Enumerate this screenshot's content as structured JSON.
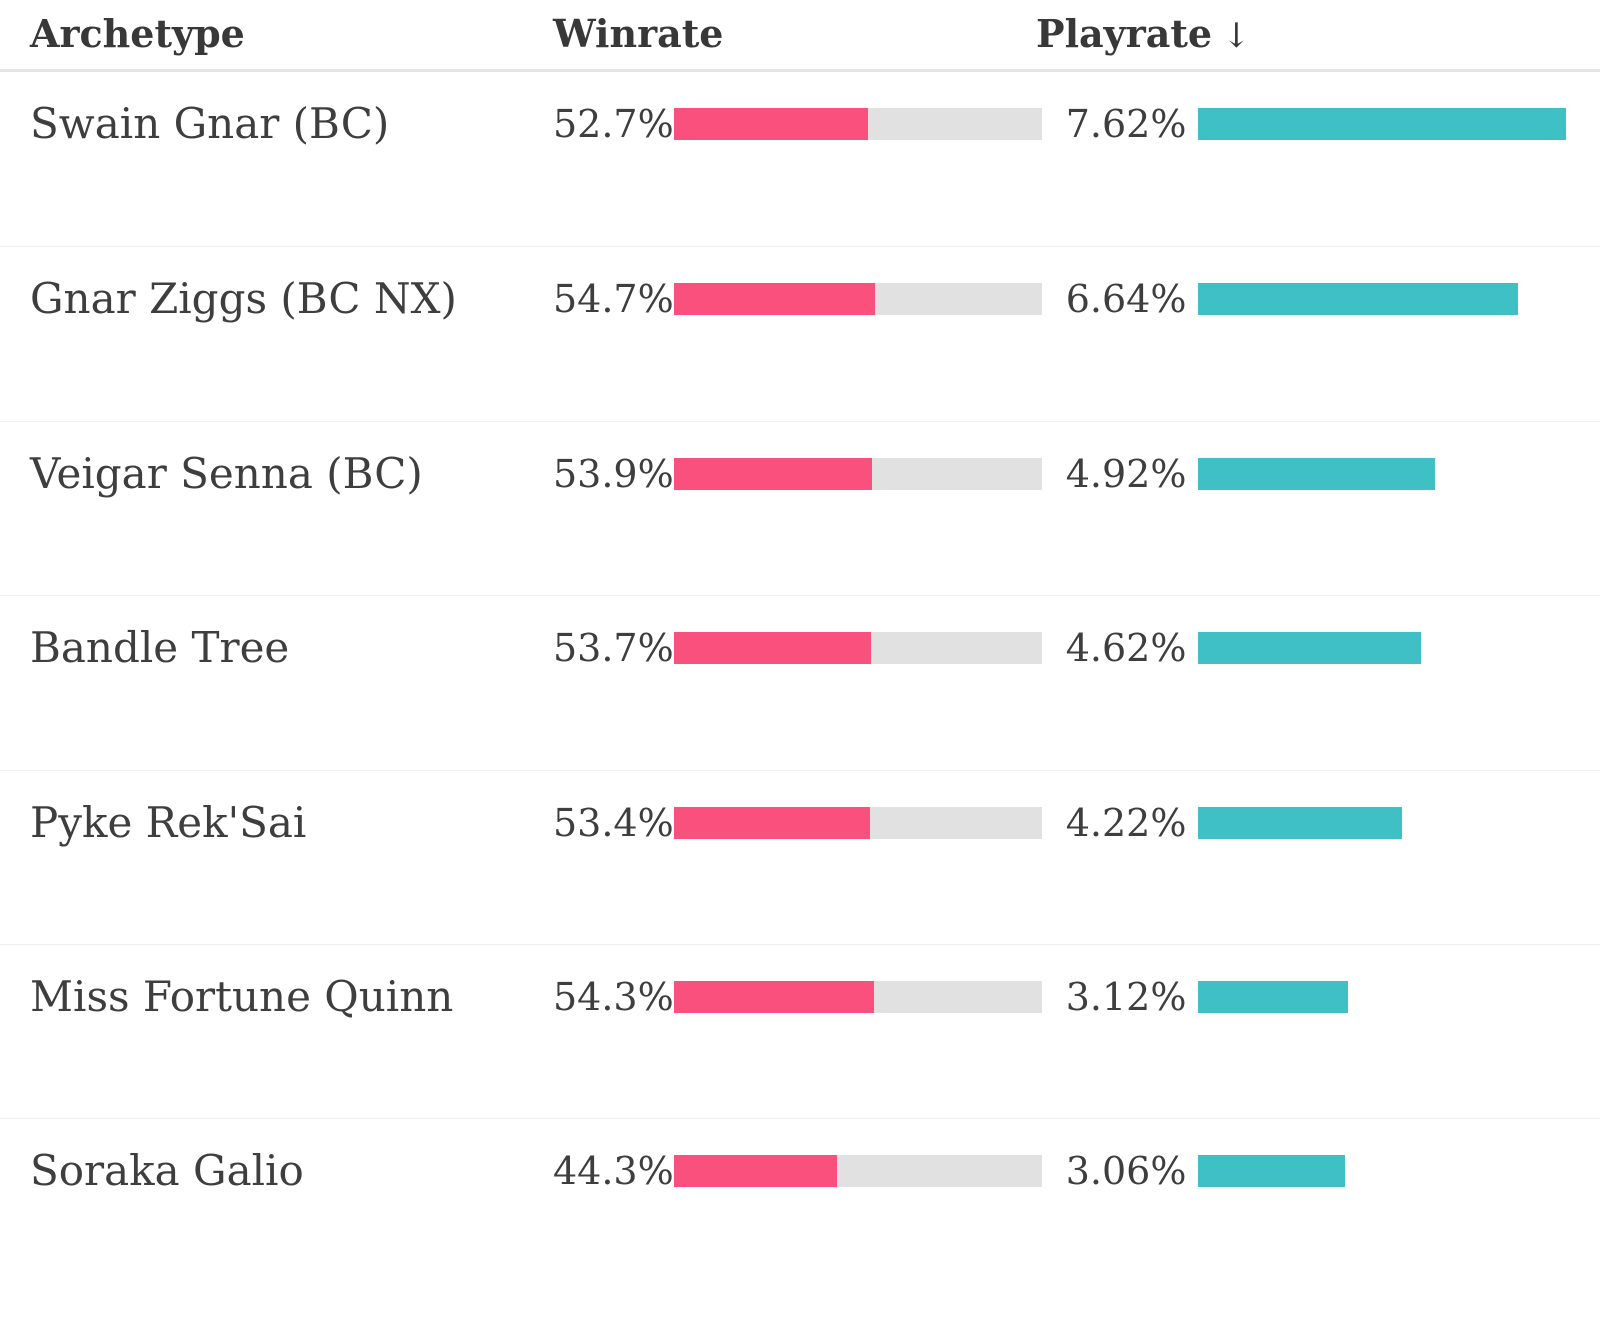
{
  "table": {
    "columns": [
      {
        "label": "Archetype"
      },
      {
        "label": "Winrate"
      },
      {
        "label": "Playrate"
      }
    ],
    "sort": {
      "column": "Playrate",
      "direction": "desc",
      "icon": "↓"
    },
    "rows": [
      {
        "archetype": "Swain Gnar (BC)",
        "winrate": "52.7%",
        "winrate_value": 52.7,
        "playrate": "7.62%",
        "playrate_value": 7.62
      },
      {
        "archetype": "Gnar Ziggs (BC NX)",
        "winrate": "54.7%",
        "winrate_value": 54.7,
        "playrate": "6.64%",
        "playrate_value": 6.64
      },
      {
        "archetype": "Veigar Senna (BC)",
        "winrate": "53.9%",
        "winrate_value": 53.9,
        "playrate": "4.92%",
        "playrate_value": 4.92
      },
      {
        "archetype": "Bandle Tree",
        "winrate": "53.7%",
        "winrate_value": 53.7,
        "playrate": "4.62%",
        "playrate_value": 4.62
      },
      {
        "archetype": "Pyke Rek'Sai",
        "winrate": "53.4%",
        "winrate_value": 53.4,
        "playrate": "4.22%",
        "playrate_value": 4.22
      },
      {
        "archetype": "Miss Fortune Quinn",
        "winrate": "54.3%",
        "winrate_value": 54.3,
        "playrate": "3.12%",
        "playrate_value": 3.12
      },
      {
        "archetype": "Soraka Galio",
        "winrate": "44.3%",
        "winrate_value": 44.3,
        "playrate": "3.06%",
        "playrate_value": 3.06
      }
    ]
  },
  "chart_data": {
    "type": "table",
    "title": "Archetype winrate / playrate table",
    "categories": [
      "Swain Gnar (BC)",
      "Gnar Ziggs (BC NX)",
      "Veigar Senna (BC)",
      "Bandle Tree",
      "Pyke Rek'Sai",
      "Miss Fortune Quinn",
      "Soraka Galio"
    ],
    "series": [
      {
        "name": "Winrate",
        "unit": "%",
        "values": [
          52.7,
          54.7,
          53.9,
          53.7,
          53.4,
          54.3,
          44.3
        ],
        "axis_max": 100,
        "bar_color": "#f9507e",
        "track_color": "#e1e1e1"
      },
      {
        "name": "Playrate",
        "unit": "%",
        "values": [
          7.62,
          6.64,
          4.92,
          4.62,
          4.22,
          3.12,
          3.06
        ],
        "axis_max": 7.62,
        "bar_color": "#3fc0c4"
      }
    ],
    "sorted_by": "Playrate descending",
    "legend": "none",
    "grid": "off"
  },
  "colors": {
    "winrate_bar": "#f9507e",
    "winrate_track": "#e1e1e1",
    "playrate_bar": "#3fc0c4",
    "text": "#3e3e3e"
  }
}
